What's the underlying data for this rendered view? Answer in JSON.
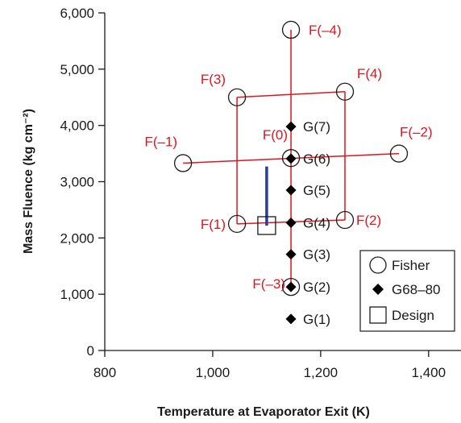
{
  "chart_data": {
    "type": "scatter",
    "xlabel": "Temperature at Evaporator Exit (K)",
    "ylabel": "Mass Fluence (kg cm⁻²)",
    "xlim": [
      800,
      1460
    ],
    "ylim": [
      0,
      6000
    ],
    "x_ticks": [
      800,
      1000,
      1200,
      1400
    ],
    "x_tick_labels": [
      "800",
      "1,000",
      "1,200",
      "1,400"
    ],
    "y_ticks": [
      0,
      1000,
      2000,
      3000,
      4000,
      5000,
      6000
    ],
    "y_tick_labels": [
      "0",
      "1,000",
      "2,000",
      "3,000",
      "4,000",
      "5,000",
      "6,000"
    ],
    "colors": {
      "fisher": "#e0141e",
      "g68": "#000000",
      "design_bar": "#2a3d9c"
    },
    "series": [
      {
        "name": "Fisher",
        "marker": "open-circle",
        "points": [
          {
            "label": "F(–4)",
            "x": 1145,
            "y": 5700
          },
          {
            "label": "F(3)",
            "x": 1045,
            "y": 4500
          },
          {
            "label": "F(4)",
            "x": 1245,
            "y": 4600
          },
          {
            "label": "F(–1)",
            "x": 945,
            "y": 3330
          },
          {
            "label": "F(0)",
            "x": 1145,
            "y": 3420
          },
          {
            "label": "F(–2)",
            "x": 1345,
            "y": 3500
          },
          {
            "label": "F(1)",
            "x": 1045,
            "y": 2250
          },
          {
            "label": "F(2)",
            "x": 1245,
            "y": 2320
          },
          {
            "label": "F(–3)",
            "x": 1145,
            "y": 1130
          }
        ]
      },
      {
        "name": "G68–80",
        "marker": "filled-diamond",
        "points": [
          {
            "label": "G(7)",
            "x": 1145,
            "y": 3980
          },
          {
            "label": "G(6)",
            "x": 1145,
            "y": 3410
          },
          {
            "label": "G(5)",
            "x": 1145,
            "y": 2850
          },
          {
            "label": "G(4)",
            "x": 1145,
            "y": 2270
          },
          {
            "label": "G(3)",
            "x": 1145,
            "y": 1710
          },
          {
            "label": "G(2)",
            "x": 1145,
            "y": 1130
          },
          {
            "label": "G(1)",
            "x": 1145,
            "y": 560
          }
        ]
      },
      {
        "name": "Design",
        "marker": "open-square",
        "points": [
          {
            "x": 1100,
            "y": 2220
          }
        ]
      }
    ],
    "design_range_bar": {
      "x": 1100,
      "y_low": 2220,
      "y_high": 3270
    },
    "legend": {
      "position": "bottom-right",
      "entries": [
        "Fisher",
        "G68–80",
        "Design"
      ]
    },
    "grid": false
  }
}
